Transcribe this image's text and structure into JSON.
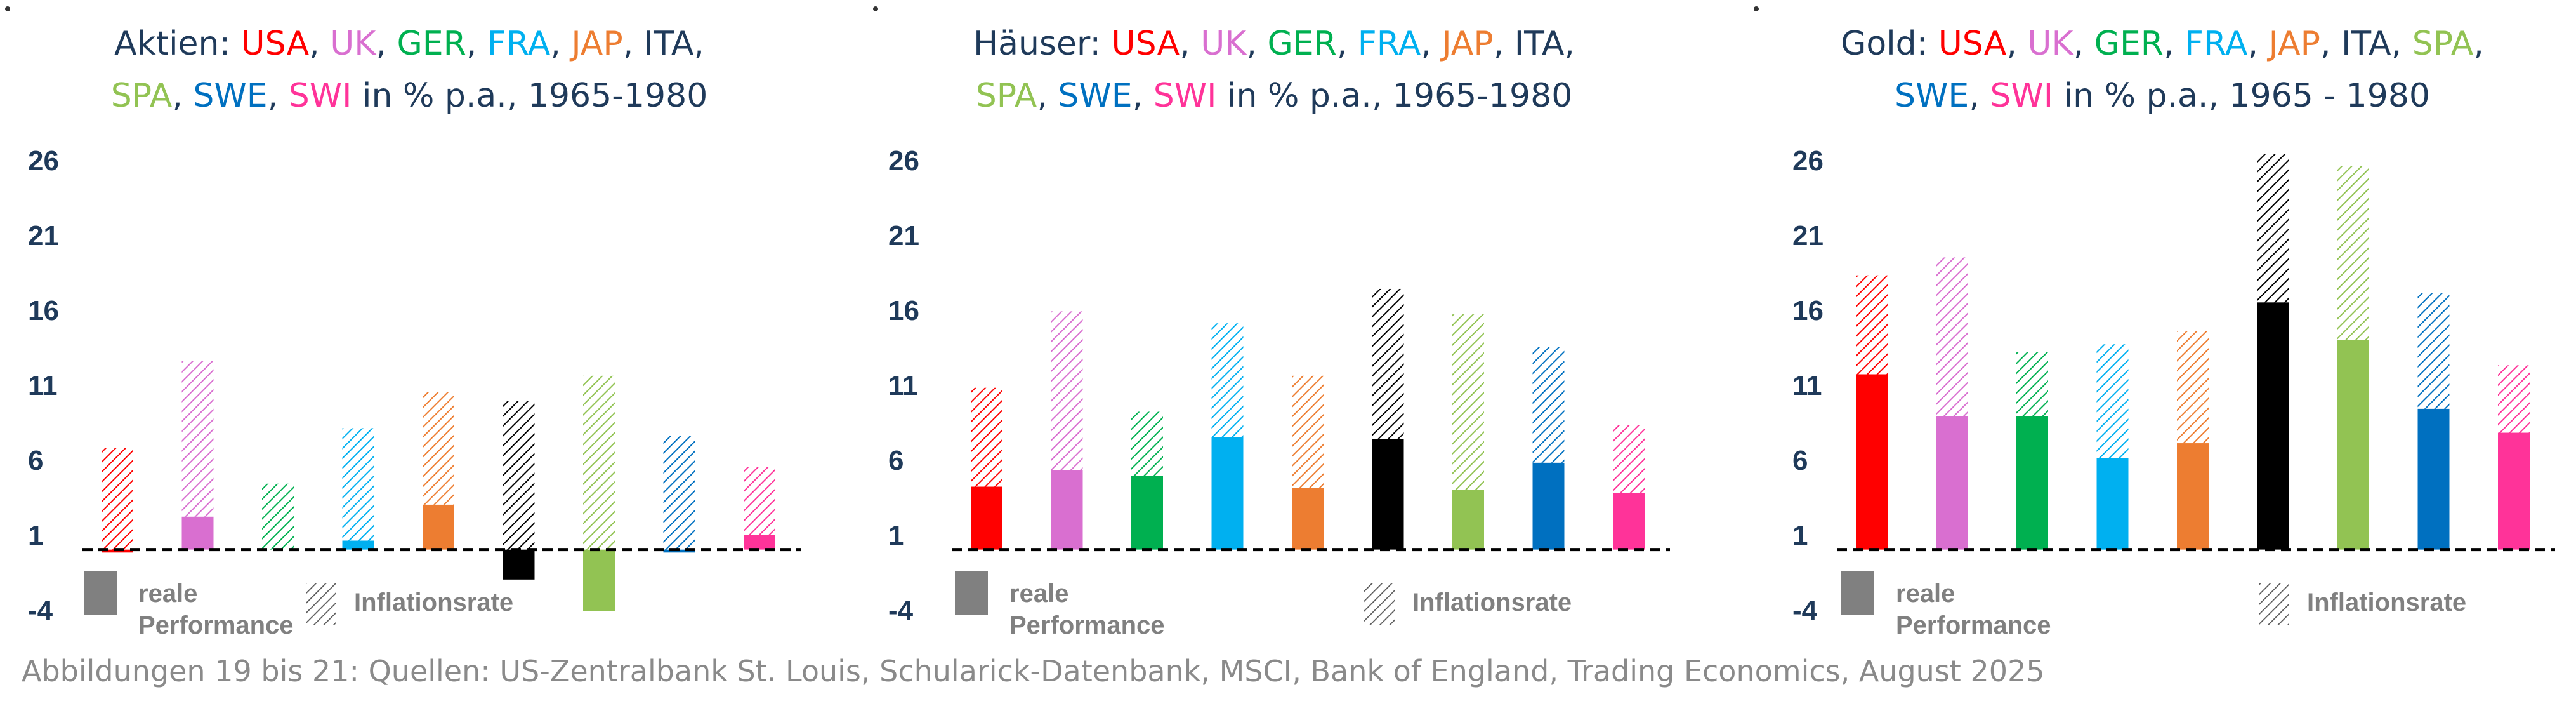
{
  "ui": {
    "source": "Abbildungen 19 bis 21: Quellen: US-Zentralbank St. Louis, Schularick-Datenbank, MSCI, Bank of England, Trading Economics, August 2025"
  },
  "colors": {
    "USA": "#ff0000",
    "UK": "#d96fd0",
    "GER": "#00b050",
    "FRA": "#00b0f0",
    "JAP": "#ed7d31",
    "ITA": "#000000",
    "SPA": "#92c353",
    "SWE": "#0070c0",
    "SWI": "#ff3399",
    "title": "#1f3a5a",
    "ticks": "#1f3a5a",
    "legend": "#808080",
    "baseline": "#000000"
  },
  "chart_data": [
    {
      "type": "bar",
      "stacked": true,
      "title_line1": [
        {
          "t": "Aktien: ",
          "c": "title"
        },
        {
          "t": "USA",
          "c": "USA"
        },
        {
          "t": ", ",
          "c": "title"
        },
        {
          "t": "UK",
          "c": "UK"
        },
        {
          "t": ", ",
          "c": "title"
        },
        {
          "t": "GER",
          "c": "GER"
        },
        {
          "t": ", ",
          "c": "title"
        },
        {
          "t": "FRA",
          "c": "FRA"
        },
        {
          "t": ", ",
          "c": "title"
        },
        {
          "t": "JAP",
          "c": "JAP"
        },
        {
          "t": ", ITA,",
          "c": "title"
        }
      ],
      "title_line2": [
        {
          "t": "SPA",
          "c": "SPA"
        },
        {
          "t": ", ",
          "c": "title"
        },
        {
          "t": "SWE",
          "c": "SWE"
        },
        {
          "t": ", ",
          "c": "title"
        },
        {
          "t": "SWI",
          "c": "SWI"
        },
        {
          "t": " in % p.a., 1965-1980",
          "c": "title"
        }
      ],
      "categories": [
        "USA",
        "UK",
        "GER",
        "FRA",
        "JAP",
        "ITA",
        "SPA",
        "SWE",
        "SWI"
      ],
      "series": [
        {
          "name": "reale Performance",
          "values": [
            -0.2,
            2.2,
            0.0,
            0.6,
            3.0,
            -2.0,
            -4.1,
            -0.2,
            1.0
          ]
        },
        {
          "name": "Inflationsrate",
          "values": [
            6.8,
            10.4,
            4.4,
            7.5,
            7.5,
            9.9,
            11.6,
            7.6,
            4.5
          ]
        }
      ],
      "yticks": [
        26,
        21,
        16,
        11,
        6,
        1,
        -4
      ],
      "ylim": [
        -4,
        26
      ],
      "legend": {
        "real_1": "reale",
        "real_2": "Performance",
        "inflation": "Inflationsrate",
        "placement": "bottom-left"
      }
    },
    {
      "type": "bar",
      "stacked": true,
      "title_line1": [
        {
          "t": "Häuser: ",
          "c": "title"
        },
        {
          "t": "USA",
          "c": "USA"
        },
        {
          "t": ", ",
          "c": "title"
        },
        {
          "t": "UK",
          "c": "UK"
        },
        {
          "t": ", ",
          "c": "title"
        },
        {
          "t": "GER",
          "c": "GER"
        },
        {
          "t": ", ",
          "c": "title"
        },
        {
          "t": "FRA",
          "c": "FRA"
        },
        {
          "t": ", ",
          "c": "title"
        },
        {
          "t": "JAP",
          "c": "JAP"
        },
        {
          "t": ", ITA,",
          "c": "title"
        }
      ],
      "title_line2": [
        {
          "t": "SPA",
          "c": "SPA"
        },
        {
          "t": ", ",
          "c": "title"
        },
        {
          "t": "SWE",
          "c": "SWE"
        },
        {
          "t": ", ",
          "c": "title"
        },
        {
          "t": "SWI",
          "c": "SWI"
        },
        {
          "t": " in % p.a., 1965-1980",
          "c": "title"
        }
      ],
      "categories": [
        "USA",
        "UK",
        "GER",
        "FRA",
        "JAP",
        "ITA",
        "SPA",
        "SWE",
        "SWI"
      ],
      "series": [
        {
          "name": "reale Performance",
          "values": [
            4.2,
            5.3,
            4.9,
            7.5,
            4.1,
            7.4,
            4.0,
            5.8,
            3.8
          ]
        },
        {
          "name": "Inflationsrate",
          "values": [
            6.6,
            10.6,
            4.3,
            7.6,
            7.5,
            10.0,
            11.7,
            7.7,
            4.5
          ]
        }
      ],
      "yticks": [
        26,
        21,
        16,
        11,
        6,
        1,
        -4
      ],
      "ylim": [
        -4,
        26
      ],
      "legend": {
        "real_1": "reale",
        "real_2": "Performance",
        "inflation": "Inflationsrate",
        "placement": "bottom-left"
      }
    },
    {
      "type": "bar",
      "stacked": true,
      "title_line1": [
        {
          "t": "Gold: ",
          "c": "title"
        },
        {
          "t": "USA",
          "c": "USA"
        },
        {
          "t": ", ",
          "c": "title"
        },
        {
          "t": "UK",
          "c": "UK"
        },
        {
          "t": ", ",
          "c": "title"
        },
        {
          "t": "GER",
          "c": "GER"
        },
        {
          "t": ", ",
          "c": "title"
        },
        {
          "t": "FRA",
          "c": "FRA"
        },
        {
          "t": ", ",
          "c": "title"
        },
        {
          "t": "JAP",
          "c": "JAP"
        },
        {
          "t": ", ITA, ",
          "c": "title"
        },
        {
          "t": "SPA",
          "c": "SPA"
        },
        {
          "t": ",",
          "c": "title"
        }
      ],
      "title_line2": [
        {
          "t": "SWE",
          "c": "SWE"
        },
        {
          "t": ", ",
          "c": "title"
        },
        {
          "t": "SWI",
          "c": "SWI"
        },
        {
          "t": " in % p.a., 1965 - 1980",
          "c": "title"
        }
      ],
      "categories": [
        "USA",
        "UK",
        "GER",
        "FRA",
        "JAP",
        "ITA",
        "SPA",
        "SWE",
        "SWI"
      ],
      "series": [
        {
          "name": "reale Performance",
          "values": [
            11.7,
            8.9,
            8.9,
            6.1,
            7.1,
            16.5,
            14.0,
            9.4,
            7.8
          ]
        },
        {
          "name": "Inflationsrate",
          "values": [
            6.6,
            10.6,
            4.3,
            7.6,
            7.5,
            9.9,
            11.6,
            7.7,
            4.5
          ]
        }
      ],
      "yticks": [
        26,
        21,
        16,
        11,
        6,
        1,
        -4
      ],
      "ylim": [
        -4,
        26
      ],
      "legend": {
        "real_1": "reale",
        "real_2": "Performance",
        "inflation": "Inflationsrate",
        "placement": "bottom-left"
      }
    }
  ]
}
